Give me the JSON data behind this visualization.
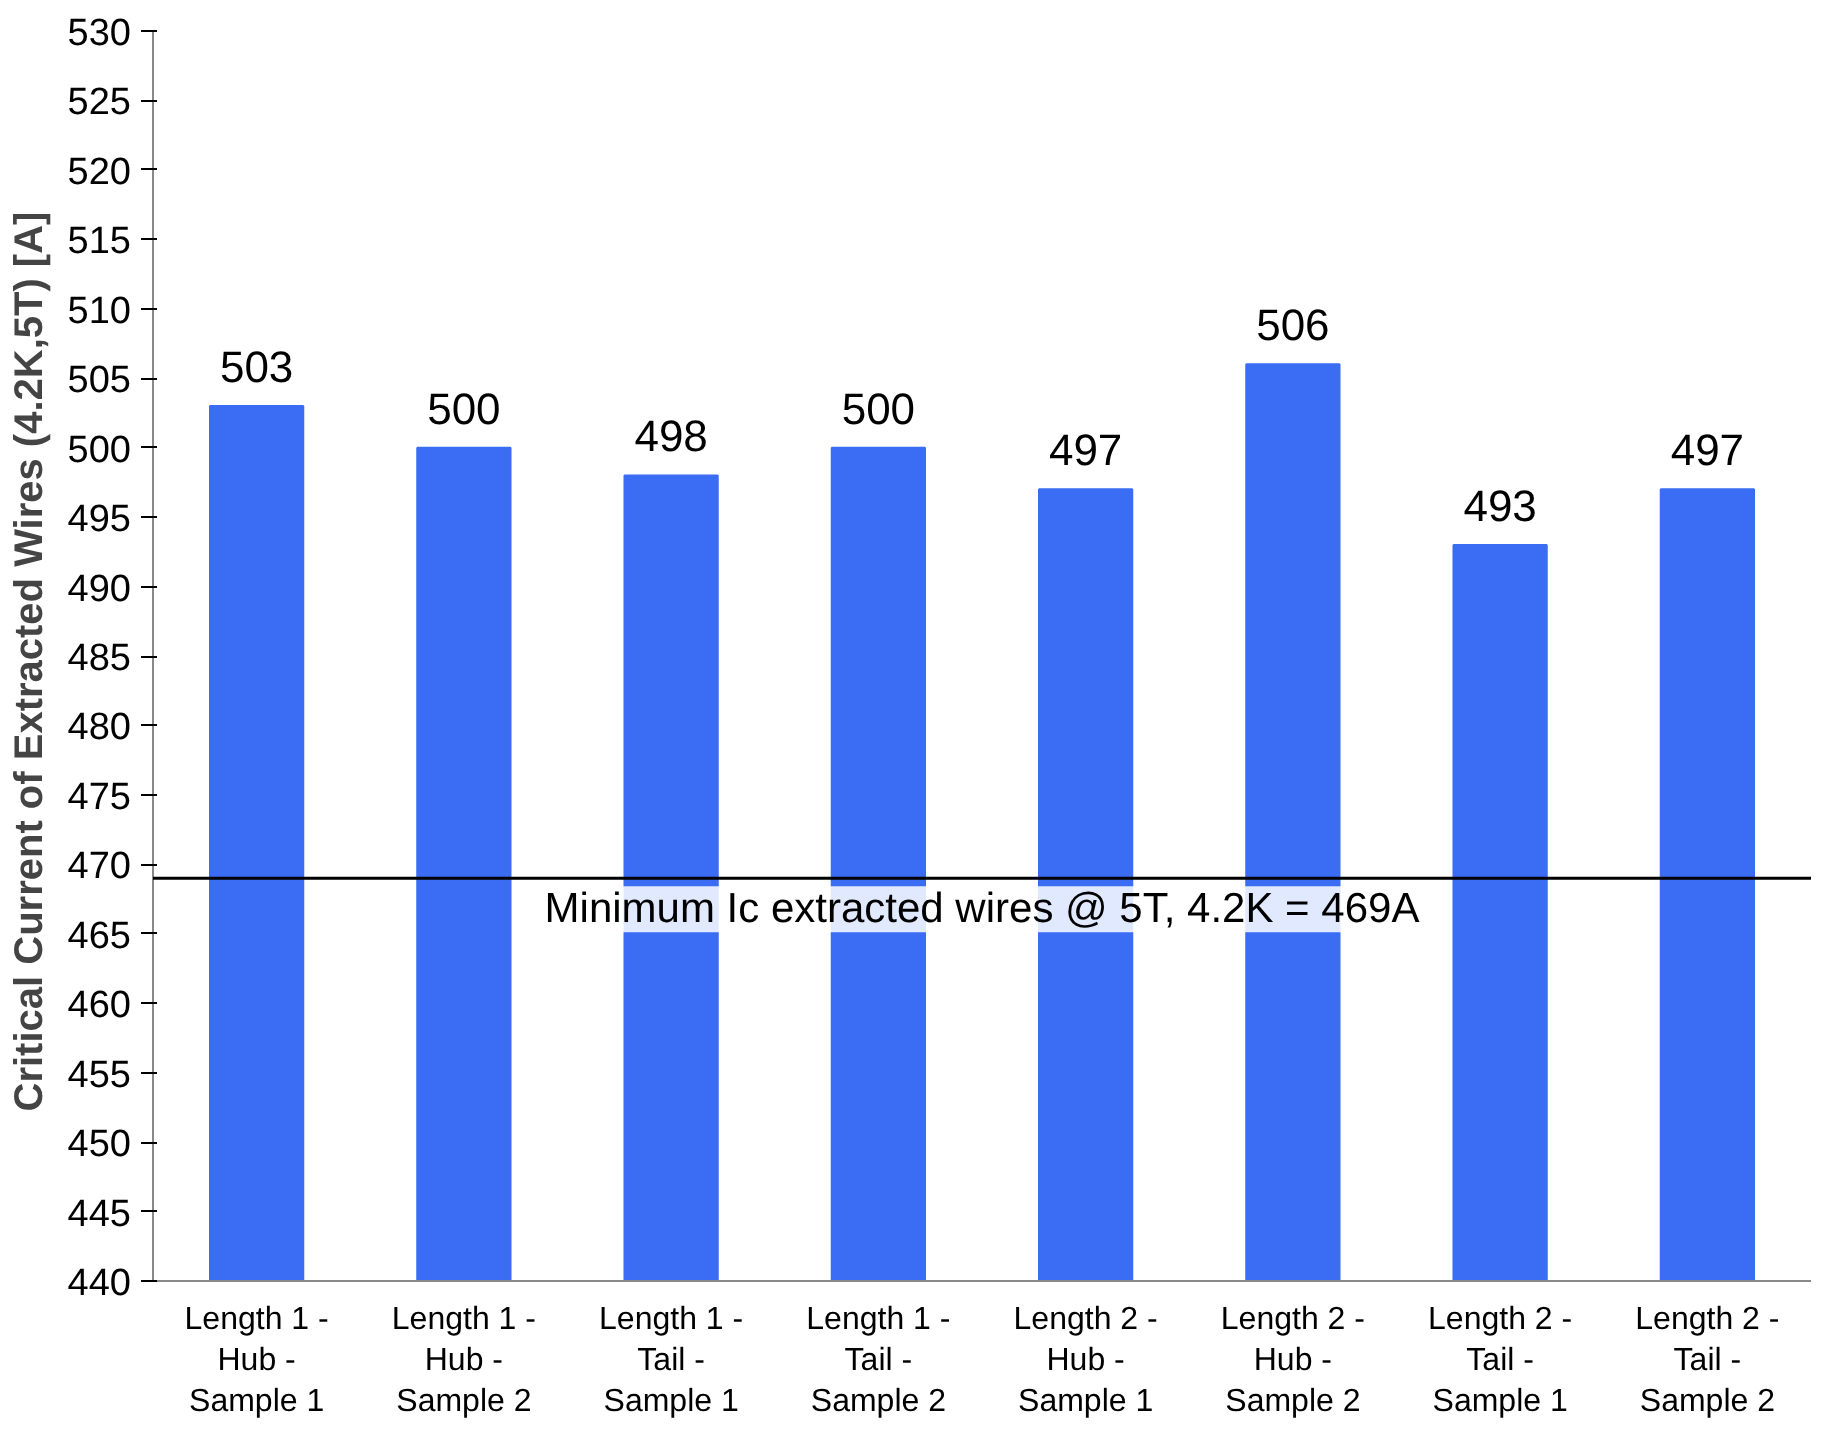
{
  "chart_data": {
    "type": "bar",
    "ylabel": "Critical Current of Extracted Wires  (4.2K,5T) [A]",
    "categories": [
      "Length 1 -\nHub -\nSample 1",
      "Length 1 -\nHub -\nSample 2",
      "Length 1 -\nTail -\nSample 1",
      "Length 1 -\nTail -\nSample 2",
      "Length 2 -\nHub -\nSample 1",
      "Length 2 -\nHub -\nSample 2",
      "Length 2 -\nTail -\nSample 1",
      "Length 2 -\nTail -\nSample 2"
    ],
    "values": [
      503,
      500,
      498,
      500,
      497,
      506,
      493,
      497
    ],
    "color": "#3b6cf4",
    "data_labels": true,
    "grid": false,
    "ylim": [
      440,
      530
    ],
    "yticks": [
      440,
      445,
      450,
      455,
      460,
      465,
      470,
      475,
      480,
      485,
      490,
      495,
      500,
      505,
      510,
      515,
      520,
      525,
      530
    ],
    "ref_lines": [
      {
        "axis": "y",
        "value": 469,
        "label": "Minimum Ic extracted wires @ 5T, 4.2K = 469A",
        "color": "#000000",
        "line_style": "solid"
      }
    ]
  }
}
